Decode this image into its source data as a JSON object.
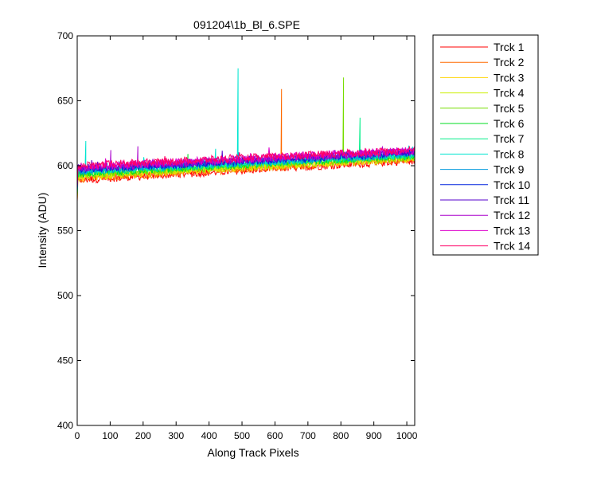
{
  "chart_data": {
    "type": "line",
    "title": "091204\\1b_Bl_6.SPE",
    "xlabel": "Along Track Pixels",
    "ylabel": "Intensity (ADU)",
    "xlim": [
      0,
      1024
    ],
    "ylim": [
      400,
      700
    ],
    "xticks": [
      0,
      100,
      200,
      300,
      400,
      500,
      600,
      700,
      800,
      900,
      1000
    ],
    "yticks": [
      400,
      450,
      500,
      550,
      600,
      650,
      700
    ],
    "grid": false,
    "legend_position": "outside-right",
    "series": [
      {
        "name": "Trck 1",
        "color": "#ff0000",
        "x": [
          0,
          1024
        ],
        "y": [
          589,
          604
        ],
        "noise": 3,
        "dip": 572,
        "spikes": []
      },
      {
        "name": "Trck 2",
        "color": "#ff6a00",
        "x": [
          0,
          1024
        ],
        "y": [
          590,
          605
        ],
        "noise": 3,
        "dip": 573,
        "spikes": [
          [
            620,
            659
          ]
        ]
      },
      {
        "name": "Trck 3",
        "color": "#ffd400",
        "x": [
          0,
          1024
        ],
        "y": [
          591,
          606
        ],
        "noise": 3,
        "dip": 574,
        "spikes": []
      },
      {
        "name": "Trck 4",
        "color": "#ccee00",
        "x": [
          0,
          1024
        ],
        "y": [
          592,
          606
        ],
        "noise": 3,
        "dip": 575,
        "spikes": []
      },
      {
        "name": "Trck 5",
        "color": "#77dd00",
        "x": [
          0,
          1024
        ],
        "y": [
          593,
          607
        ],
        "noise": 3,
        "dip": 576,
        "spikes": [
          [
            808,
            668
          ]
        ]
      },
      {
        "name": "Trck 6",
        "color": "#00dd22",
        "x": [
          0,
          1024
        ],
        "y": [
          594,
          608
        ],
        "noise": 3,
        "dip": 577,
        "spikes": [
          [
            335,
            609
          ]
        ]
      },
      {
        "name": "Trck 7",
        "color": "#00ee88",
        "x": [
          0,
          1024
        ],
        "y": [
          595,
          608
        ],
        "noise": 3,
        "dip": 578,
        "spikes": [
          [
            858,
            637
          ]
        ]
      },
      {
        "name": "Trck 8",
        "color": "#00e5d0",
        "x": [
          0,
          1024
        ],
        "y": [
          596,
          609
        ],
        "noise": 3,
        "dip": 579,
        "spikes": [
          [
            487,
            675
          ],
          [
            25,
            619
          ],
          [
            420,
            613
          ]
        ]
      },
      {
        "name": "Trck 9",
        "color": "#0099dd",
        "x": [
          0,
          1024
        ],
        "y": [
          596,
          609
        ],
        "noise": 3,
        "dip": 580,
        "spikes": []
      },
      {
        "name": "Trck 10",
        "color": "#0022dd",
        "x": [
          0,
          1024
        ],
        "y": [
          597,
          610
        ],
        "noise": 3,
        "dip": 581,
        "spikes": []
      },
      {
        "name": "Trck 11",
        "color": "#5500cc",
        "x": [
          0,
          1024
        ],
        "y": [
          598,
          611
        ],
        "noise": 3,
        "dip": 582,
        "spikes": []
      },
      {
        "name": "Trck 12",
        "color": "#aa00cc",
        "x": [
          0,
          1024
        ],
        "y": [
          598,
          611
        ],
        "noise": 3,
        "dip": 583,
        "spikes": [
          [
            183,
            615
          ],
          [
            102,
            612
          ]
        ]
      },
      {
        "name": "Trck 13",
        "color": "#dd00cc",
        "x": [
          0,
          1024
        ],
        "y": [
          599,
          612
        ],
        "noise": 3,
        "dip": 584,
        "spikes": []
      },
      {
        "name": "Trck 14",
        "color": "#ff0066",
        "x": [
          0,
          1024
        ],
        "y": [
          600,
          612
        ],
        "noise": 3,
        "dip": 585,
        "spikes": []
      }
    ]
  }
}
